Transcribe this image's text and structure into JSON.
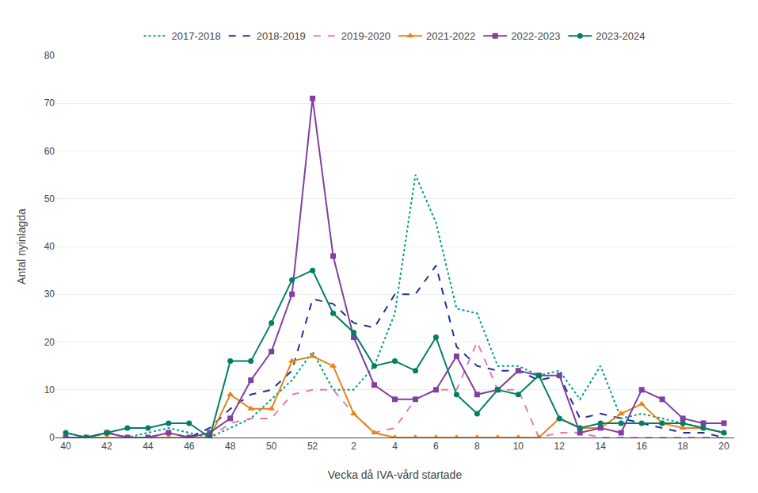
{
  "chart_data": {
    "type": "line",
    "xlabel": "Vecka då IVA-vård startade",
    "ylabel": "Antal nyinlagda",
    "categories": [
      "40",
      null,
      "42",
      null,
      "44",
      null,
      "46",
      null,
      "48",
      null,
      "50",
      null,
      "52",
      null,
      "2",
      null,
      "4",
      null,
      "6",
      null,
      "8",
      null,
      "10",
      null,
      "12",
      null,
      "14",
      null,
      "16",
      null,
      "18",
      null,
      "20"
    ],
    "ylim": [
      0,
      80
    ],
    "yticks": [
      0,
      10,
      20,
      30,
      40,
      50,
      60,
      70,
      80
    ],
    "grid": true,
    "legend": "top",
    "series": [
      {
        "name": "2017-2018",
        "color": "#00a080",
        "line_style": "dotted",
        "values": [
          1,
          0,
          1,
          0,
          1,
          2,
          1,
          0,
          2,
          4,
          8,
          12,
          18,
          10,
          10,
          15,
          26,
          55,
          45,
          27,
          26,
          15,
          15,
          13,
          14,
          8,
          15,
          4,
          5,
          4,
          3,
          2,
          1
        ]
      },
      {
        "name": "2018-2019",
        "color": "#1a3399",
        "line_style": "dashed",
        "values": [
          0,
          0,
          1,
          0,
          0,
          1,
          0,
          2,
          6,
          9,
          10,
          14,
          29,
          28,
          24,
          23,
          30,
          30,
          36,
          19,
          15,
          14,
          14,
          12,
          13,
          4,
          5,
          4,
          3,
          2,
          1,
          1,
          0
        ]
      },
      {
        "name": "2019-2020",
        "color": "#e87ab0",
        "line_style": "dashed",
        "values": [
          0,
          0,
          0,
          0,
          0,
          0,
          0,
          0,
          3,
          4,
          4,
          9,
          10,
          10,
          5,
          1,
          2,
          8,
          10,
          10,
          20,
          10,
          10,
          0,
          1,
          1,
          0,
          0,
          0,
          0,
          0,
          0,
          0
        ]
      },
      {
        "name": "2021-2022",
        "color": "#e8821a",
        "line_style": "solid",
        "marker": "triangle",
        "values": [
          0,
          0,
          0,
          0,
          0,
          0,
          0,
          0,
          9,
          6,
          6,
          16,
          17,
          15,
          5,
          1,
          0,
          0,
          0,
          0,
          0,
          0,
          0,
          0,
          4,
          2,
          2,
          5,
          7,
          3,
          2,
          2,
          1
        ]
      },
      {
        "name": "2022-2023",
        "color": "#8040a0",
        "line_style": "solid",
        "marker": "square",
        "values": [
          0,
          0,
          1,
          0,
          0,
          1,
          0,
          1,
          4,
          12,
          18,
          30,
          71,
          38,
          21,
          11,
          8,
          8,
          10,
          17,
          9,
          10,
          14,
          13,
          13,
          1,
          2,
          1,
          10,
          8,
          4,
          3,
          3
        ]
      },
      {
        "name": "2023-2024",
        "color": "#008060",
        "line_style": "solid",
        "marker": "circle",
        "values": [
          1,
          0,
          1,
          2,
          2,
          3,
          3,
          0,
          16,
          16,
          24,
          33,
          35,
          26,
          22,
          15,
          16,
          14,
          21,
          9,
          5,
          10,
          9,
          13,
          4,
          2,
          3,
          3,
          3,
          3,
          3,
          2,
          1
        ]
      }
    ]
  }
}
